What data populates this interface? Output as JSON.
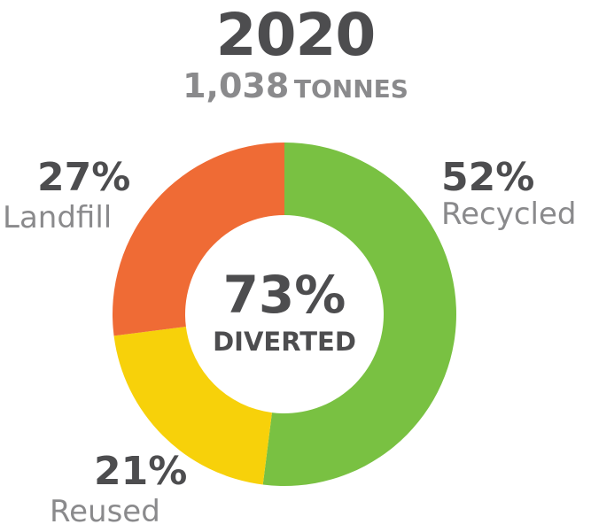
{
  "header": {
    "year": "2020",
    "total_value": "1,038",
    "total_unit": "TONNES"
  },
  "center": {
    "percent": "73%",
    "label": "DIVERTED"
  },
  "colors": {
    "recycled": "#79c142",
    "reused": "#f7d10a",
    "landfill": "#ef6b35",
    "dark_text": "#4d4d4f",
    "light_text": "#8a8a8c"
  },
  "chart_data": {
    "type": "pie",
    "title": "2020",
    "subtitle": "1,038 TONNES",
    "slices": [
      {
        "label": "Recycled",
        "value": 52,
        "percent_label": "52%",
        "color": "#79c142"
      },
      {
        "label": "Reused",
        "value": 21,
        "percent_label": "21%",
        "color": "#f7d10a"
      },
      {
        "label": "Landfill",
        "value": 27,
        "percent_label": "27%",
        "color": "#ef6b35"
      }
    ],
    "center_text": "73% DIVERTED"
  }
}
